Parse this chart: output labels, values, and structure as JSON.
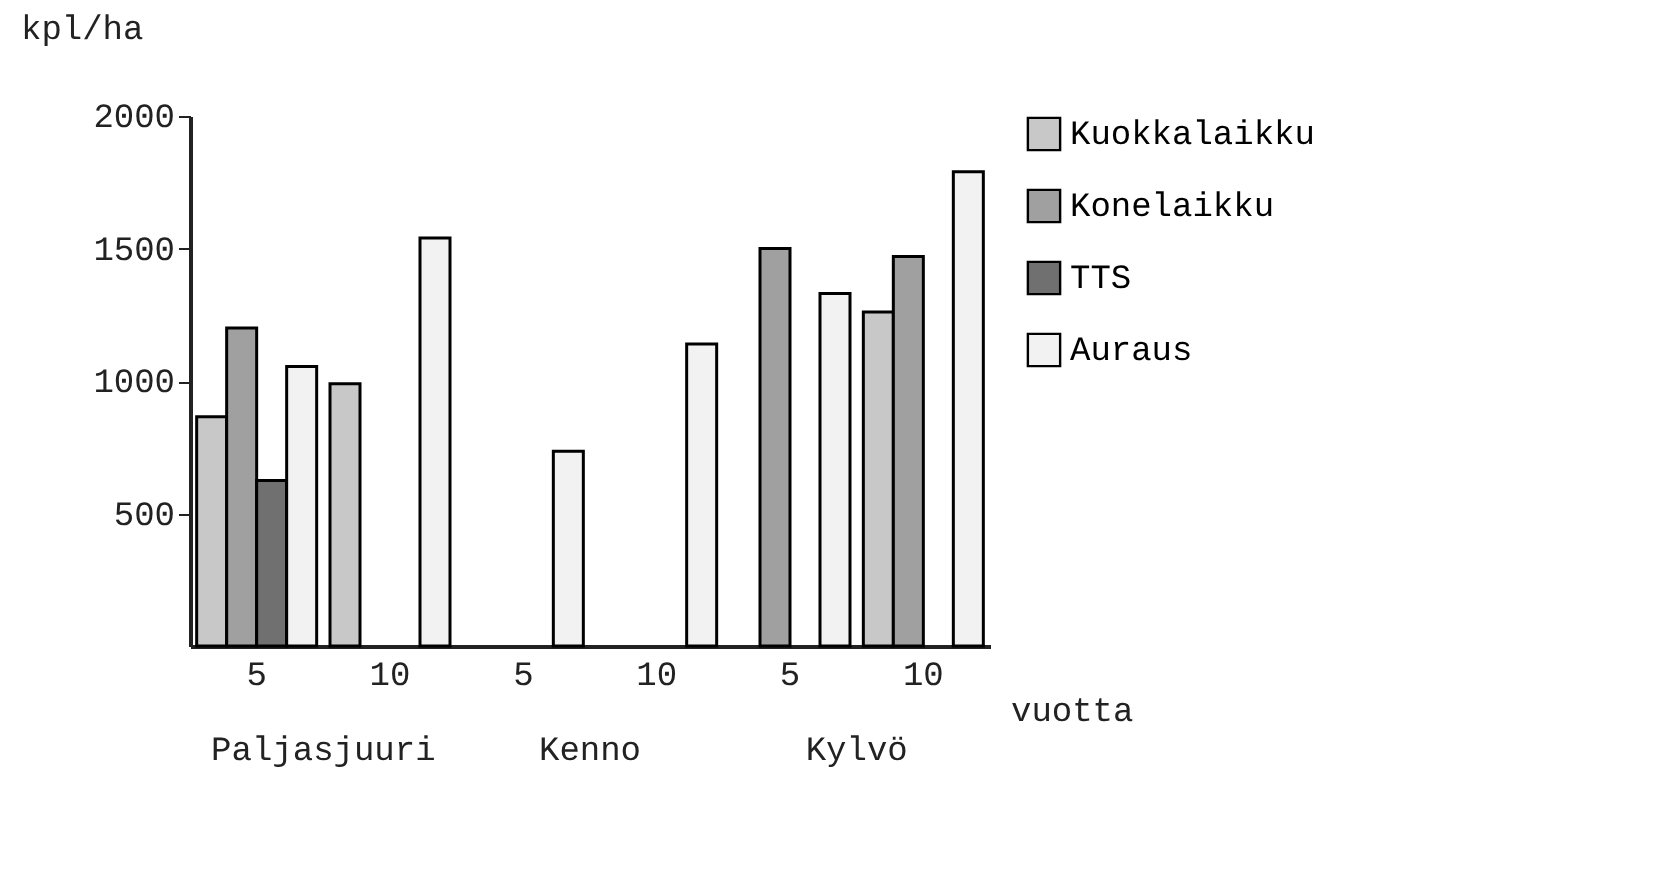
{
  "chart_data": {
    "type": "bar",
    "ylabel": "kpl/ha",
    "xlabel": "vuotta",
    "categories": [
      "5",
      "10",
      "5",
      "10",
      "5",
      "10"
    ],
    "series": [
      {
        "name": "Kuokkalaikku",
        "color": "#c8c8c8",
        "values": [
          865,
          990,
          null,
          null,
          null,
          1260
        ]
      },
      {
        "name": "Konelaikku",
        "color": "#a0a0a0",
        "values": [
          1200,
          null,
          null,
          null,
          1500,
          1470
        ]
      },
      {
        "name": "TTS",
        "color": "#707070",
        "values": [
          625,
          null,
          null,
          null,
          null,
          null
        ]
      },
      {
        "name": "Auraus",
        "color": "#f2f2f2",
        "values": [
          1055,
          1540,
          735,
          1140,
          1330,
          1790
        ]
      }
    ],
    "annotations": [
      "Paljasjuuri",
      "Kenno",
      "Kylvö"
    ],
    "ylim": [
      0,
      2000
    ],
    "yticks": [
      500,
      1000,
      1500,
      2000
    ],
    "grid": false,
    "legend": "right"
  }
}
